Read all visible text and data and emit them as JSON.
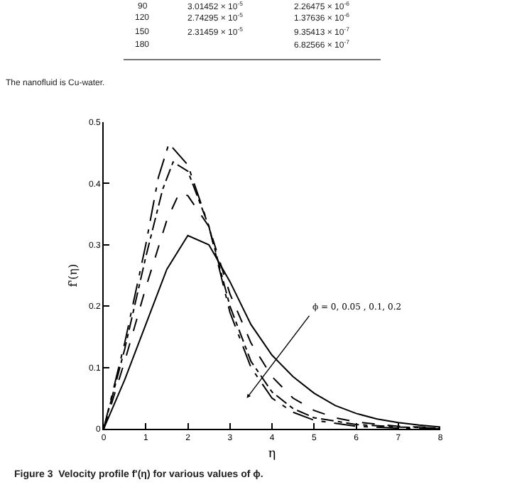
{
  "chart_data": {
    "type": "line",
    "xlabel": "η",
    "ylabel": "f'(η)",
    "xlim": [
      0,
      8
    ],
    "ylim": [
      0,
      0.5
    ],
    "xticks": [
      0,
      1,
      2,
      3,
      4,
      5,
      6,
      7,
      8
    ],
    "yticks": [
      0,
      0.1,
      0.2,
      0.3,
      0.4,
      0.5
    ],
    "marker": "none",
    "series": [
      {
        "color": "#000000",
        "line_style": "solid",
        "x": [
          0,
          0.5,
          1,
          1.5,
          2,
          2.5,
          3,
          3.5,
          4,
          4.5,
          5,
          5.5,
          6,
          6.5,
          7,
          7.5,
          8
        ],
        "values": [
          0,
          0.08,
          0.17,
          0.26,
          0.315,
          0.3,
          0.24,
          0.17,
          0.12,
          0.085,
          0.058,
          0.038,
          0.025,
          0.016,
          0.01,
          0.006,
          0.003
        ]
      },
      {
        "color": "#000000",
        "line_style": "dashed",
        "x": [
          0,
          0.5,
          1,
          1.5,
          1.8,
          2,
          2.5,
          3,
          3.5,
          4,
          4.5,
          5,
          5.5,
          6,
          7,
          8
        ],
        "values": [
          0,
          0.11,
          0.23,
          0.34,
          0.385,
          0.38,
          0.33,
          0.22,
          0.14,
          0.085,
          0.05,
          0.03,
          0.018,
          0.011,
          0.004,
          0.002
        ]
      },
      {
        "color": "#000000",
        "line_style": "dashdot",
        "x": [
          0,
          0.5,
          1,
          1.4,
          1.65,
          2,
          2.5,
          3,
          3.5,
          4,
          4.5,
          5,
          6,
          7,
          8
        ],
        "values": [
          0,
          0.13,
          0.28,
          0.39,
          0.435,
          0.42,
          0.33,
          0.2,
          0.11,
          0.06,
          0.033,
          0.018,
          0.007,
          0.003,
          0.001
        ]
      },
      {
        "color": "#000000",
        "line_style": "dashdotdot",
        "x": [
          0,
          0.5,
          1,
          1.3,
          1.55,
          2,
          2.5,
          3,
          3.5,
          4,
          4.5,
          5,
          6,
          7,
          8
        ],
        "values": [
          0,
          0.14,
          0.3,
          0.41,
          0.465,
          0.43,
          0.33,
          0.19,
          0.1,
          0.05,
          0.027,
          0.014,
          0.004,
          0.001,
          0
        ]
      }
    ],
    "annotations": [
      "90",
      "3.01452 × 10$^{-5}$",
      "2.26475 × 10$^{-6}$",
      "120",
      "2.74295 × 10$^{-5}$",
      "1.37636 × 10$^{-6}$",
      "150",
      "2.31459 × 10$^{-5}$",
      "9.35413 × 10$^{-7}$",
      "180",
      "6.82566 × 10$^{-7}$",
      "The nanofluid is Cu-water.",
      {
        "text": "ϕ = 0, 0.05 , 0.1, 0.2",
        "x": 3.4,
        "y": 0.05
      },
      "Figure 3  Velocity profile f'(η) for various values of ϕ."
    ]
  }
}
